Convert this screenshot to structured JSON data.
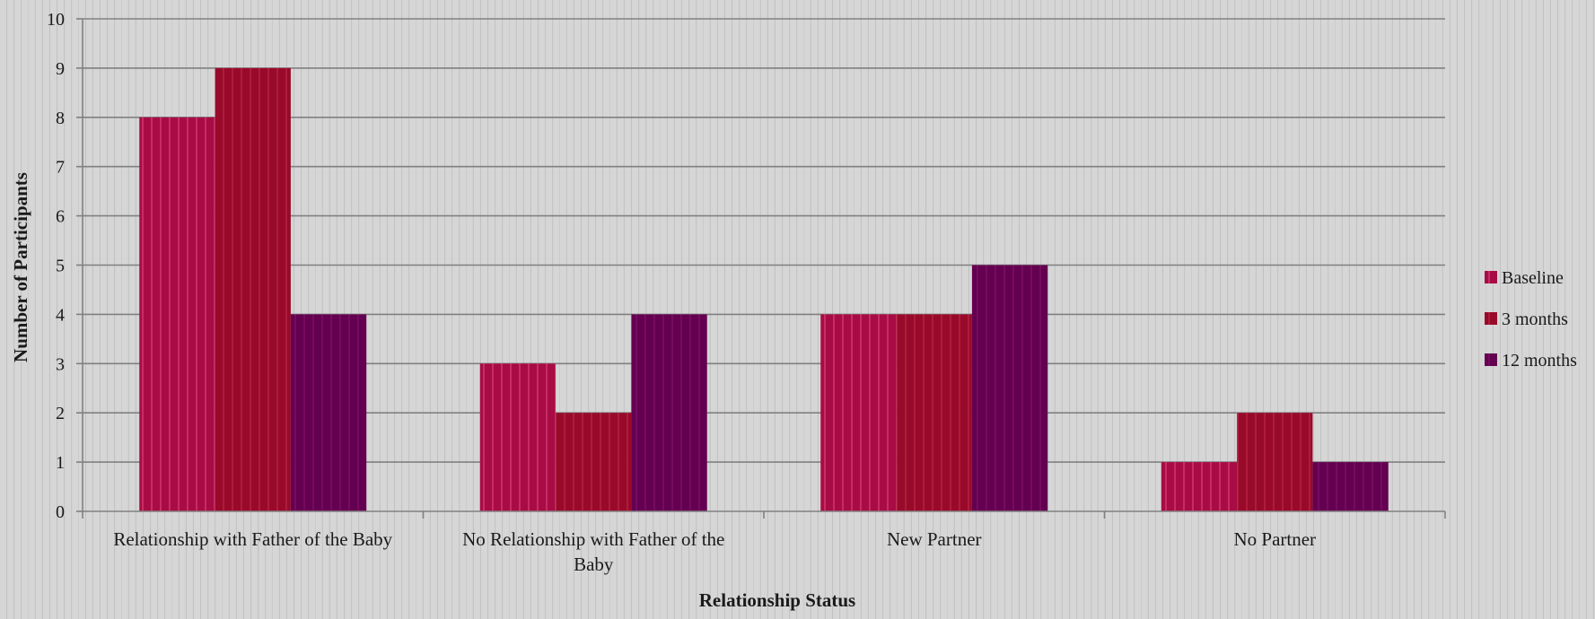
{
  "chart_data": {
    "type": "bar",
    "categories": [
      "Relationship with Father of the Baby",
      "No Relationship with Father of the Baby",
      "New Partner",
      "No Partner"
    ],
    "category_lines": [
      [
        "Relationship with Father of the Baby"
      ],
      [
        "No Relationship with Father of the",
        "Baby"
      ],
      [
        "New Partner"
      ],
      [
        "No Partner"
      ]
    ],
    "series": [
      {
        "name": "Baseline",
        "values": [
          8,
          3,
          4,
          1
        ],
        "color": "#a80c44"
      },
      {
        "name": "3 months",
        "values": [
          9,
          2,
          4,
          2
        ],
        "color": "#980a2a"
      },
      {
        "name": "12 months",
        "values": [
          4,
          4,
          5,
          1
        ],
        "color": "#640050"
      }
    ],
    "title": "",
    "xlabel": "Relationship Status",
    "ylabel": "Number of Participants",
    "ylim": [
      0,
      10
    ],
    "yticks": [
      0,
      1,
      2,
      3,
      4,
      5,
      6,
      7,
      8,
      9,
      10
    ],
    "grid": true,
    "legend_position": "right"
  }
}
